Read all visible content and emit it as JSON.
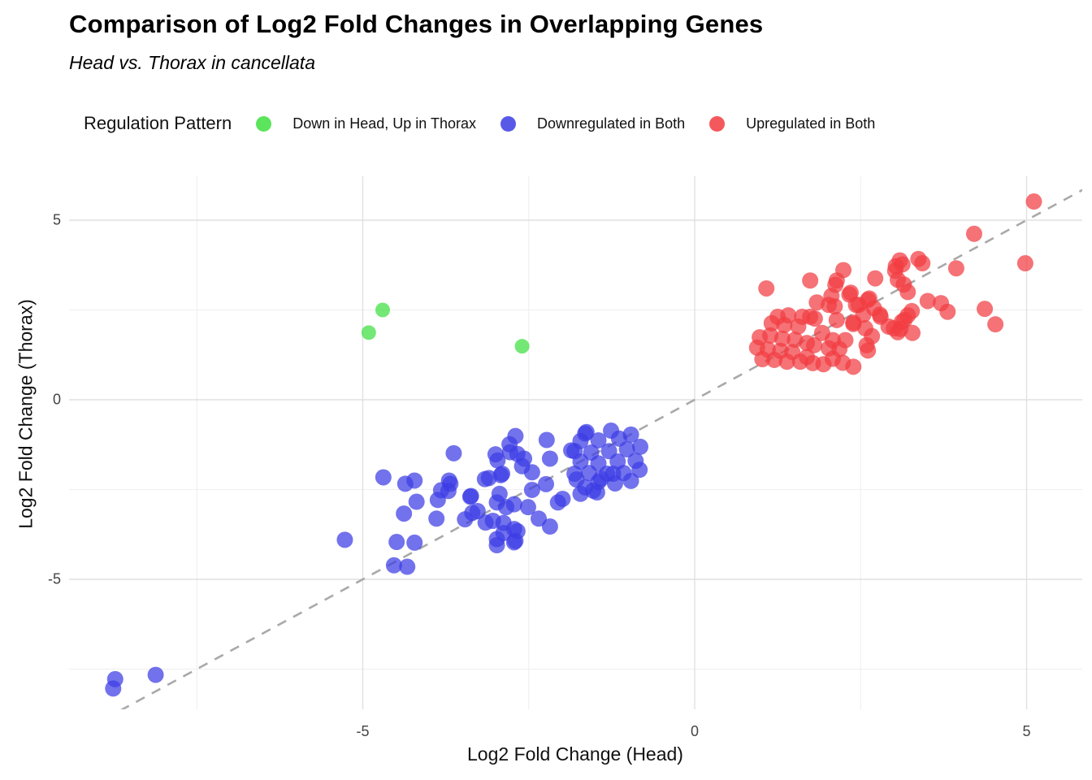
{
  "header": {
    "title": "Comparison of Log2 Fold Changes in Overlapping Genes",
    "subtitle": "Head vs. Thorax in cancellata"
  },
  "legend": {
    "title": "Regulation Pattern",
    "position": "top"
  },
  "axes": {
    "x": {
      "label": "Log2 Fold Change (Head)",
      "major_ticks": [
        -5,
        0,
        5
      ],
      "minor_ticks": [
        -7.5,
        -2.5,
        2.5
      ]
    },
    "y": {
      "label": "Log2 Fold Change (Thorax)",
      "major_ticks": [
        5,
        0,
        -5
      ],
      "minor_ticks": [
        2.5,
        -2.5,
        -7.5
      ]
    }
  },
  "reference_line": {
    "type": "identity y = x",
    "style": "dashed",
    "color": "#a9a9a9"
  },
  "colors": {
    "grid_major": "#e0e0e0",
    "grid_minor": "#efefef",
    "background": "#ffffff"
  },
  "chart_data": {
    "type": "scatter",
    "title": "Comparison of Log2 Fold Changes in Overlapping Genes",
    "subtitle": "Head vs. Thorax in cancellata",
    "xlabel": "Log2 Fold Change (Head)",
    "ylabel": "Log2 Fold Change (Thorax)",
    "xlim": [
      -9.4,
      5.8
    ],
    "ylim": [
      -8.6,
      6.2
    ],
    "grid": true,
    "series": [
      {
        "name": "Down in Head, Up in Thorax",
        "color": "#3fdf3f",
        "points": [
          [
            -4.7,
            2.5
          ],
          [
            -4.91,
            1.87
          ],
          [
            -2.6,
            1.49
          ]
        ]
      },
      {
        "name": "Downregulated in Both",
        "color": "#3c3ce4",
        "points": [
          [
            -8.73,
            -7.78
          ],
          [
            -8.76,
            -8.04
          ],
          [
            -8.12,
            -7.66
          ],
          [
            -5.27,
            -3.9
          ],
          [
            -4.69,
            -2.16
          ],
          [
            -4.36,
            -2.34
          ],
          [
            -4.22,
            -2.25
          ],
          [
            -4.38,
            -3.17
          ],
          [
            -4.19,
            -2.84
          ],
          [
            -3.87,
            -2.79
          ],
          [
            -3.89,
            -3.31
          ],
          [
            -4.49,
            -3.96
          ],
          [
            -4.22,
            -3.98
          ],
          [
            -4.53,
            -4.61
          ],
          [
            -4.33,
            -4.65
          ],
          [
            -3.63,
            -1.49
          ],
          [
            -3.68,
            -2.34
          ],
          [
            -3.71,
            -2.54
          ],
          [
            -3.37,
            -2.68
          ],
          [
            -3.35,
            -3.15
          ],
          [
            -3.15,
            -3.42
          ],
          [
            -3.82,
            -2.52
          ],
          [
            -3.7,
            -2.25
          ],
          [
            -3.38,
            -2.7
          ],
          [
            -3.27,
            -3.1
          ],
          [
            -3.46,
            -3.33
          ],
          [
            -3.04,
            -3.37
          ],
          [
            -2.98,
            -2.86
          ],
          [
            -2.84,
            -2.99
          ],
          [
            -2.88,
            -3.71
          ],
          [
            -2.98,
            -4.05
          ],
          [
            -2.72,
            -3.6
          ],
          [
            -2.7,
            -3.93
          ],
          [
            -2.35,
            -3.31
          ],
          [
            -2.51,
            -2.99
          ],
          [
            -2.06,
            -2.86
          ],
          [
            -2.18,
            -3.53
          ],
          [
            -2.97,
            -1.69
          ],
          [
            -2.79,
            -1.24
          ],
          [
            -2.67,
            -1.51
          ],
          [
            -2.6,
            -1.85
          ],
          [
            -3.1,
            -2.18
          ],
          [
            -2.92,
            -2.1
          ],
          [
            -2.7,
            -1.01
          ],
          [
            -2.23,
            -1.12
          ],
          [
            -1.65,
            -0.94
          ],
          [
            -3.0,
            -1.52
          ],
          [
            -2.78,
            -1.46
          ],
          [
            -2.57,
            -1.64
          ],
          [
            -2.18,
            -1.64
          ],
          [
            -1.86,
            -1.41
          ],
          [
            -2.9,
            -2.06
          ],
          [
            -2.45,
            -2.02
          ],
          [
            -2.24,
            -2.35
          ],
          [
            -1.81,
            -2.06
          ],
          [
            -1.41,
            -2.2
          ],
          [
            -1.23,
            -2.06
          ],
          [
            -2.94,
            -2.62
          ],
          [
            -2.72,
            -2.91
          ],
          [
            -2.45,
            -2.51
          ],
          [
            -1.99,
            -2.76
          ],
          [
            -1.72,
            -2.62
          ],
          [
            -1.47,
            -2.58
          ],
          [
            -2.88,
            -3.43
          ],
          [
            -2.67,
            -3.66
          ],
          [
            -2.72,
            -3.97
          ],
          [
            -2.98,
            -3.88
          ],
          [
            -3.16,
            -2.21
          ],
          [
            -1.63,
            -0.9
          ],
          [
            -1.26,
            -0.86
          ],
          [
            -1.72,
            -1.15
          ],
          [
            -1.45,
            -1.13
          ],
          [
            -1.14,
            -1.08
          ],
          [
            -0.96,
            -0.97
          ],
          [
            -1.81,
            -1.43
          ],
          [
            -1.56,
            -1.47
          ],
          [
            -1.29,
            -1.43
          ],
          [
            -1.02,
            -1.38
          ],
          [
            -0.82,
            -1.31
          ],
          [
            -1.72,
            -1.72
          ],
          [
            -1.45,
            -1.77
          ],
          [
            -1.16,
            -1.72
          ],
          [
            -0.89,
            -1.7
          ],
          [
            -1.59,
            -2.04
          ],
          [
            -1.32,
            -2.06
          ],
          [
            -1.07,
            -2.04
          ],
          [
            -0.83,
            -1.95
          ],
          [
            -1.45,
            -2.29
          ],
          [
            -1.2,
            -2.33
          ],
          [
            -0.96,
            -2.26
          ],
          [
            -1.78,
            -2.22
          ],
          [
            -1.65,
            -2.44
          ],
          [
            -1.53,
            -2.53
          ]
        ]
      },
      {
        "name": "Upregulated in Both",
        "color": "#f13b41",
        "points": [
          [
            1.08,
            3.1
          ],
          [
            1.74,
            3.32
          ],
          [
            2.12,
            3.2
          ],
          [
            2.72,
            3.38
          ],
          [
            3.06,
            3.34
          ],
          [
            2.35,
            2.98
          ],
          [
            3.21,
            3.0
          ],
          [
            1.84,
            2.71
          ],
          [
            2.11,
            2.6
          ],
          [
            2.47,
            2.64
          ],
          [
            2.61,
            2.78
          ],
          [
            2.24,
            3.61
          ],
          [
            2.14,
            3.32
          ],
          [
            3.03,
            3.72
          ],
          [
            3.09,
            3.88
          ],
          [
            2.06,
            2.89
          ],
          [
            2.33,
            2.93
          ],
          [
            2.63,
            2.82
          ],
          [
            2.02,
            2.64
          ],
          [
            2.43,
            2.64
          ],
          [
            2.7,
            2.55
          ],
          [
            2.79,
            2.37
          ],
          [
            1.74,
            2.31
          ],
          [
            2.14,
            2.22
          ],
          [
            2.39,
            2.15
          ],
          [
            2.57,
            1.99
          ],
          [
            2.67,
            1.77
          ],
          [
            1.92,
            1.86
          ],
          [
            2.08,
            1.66
          ],
          [
            2.27,
            1.66
          ],
          [
            2.02,
            1.43
          ],
          [
            2.18,
            1.41
          ],
          [
            1.8,
            1.52
          ],
          [
            2.61,
            1.37
          ],
          [
            3.0,
            1.99
          ],
          [
            3.06,
            1.88
          ],
          [
            3.16,
            2.22
          ],
          [
            1.69,
            1.19
          ],
          [
            1.25,
            2.31
          ],
          [
            1.41,
            2.35
          ],
          [
            1.62,
            2.31
          ],
          [
            1.81,
            2.26
          ],
          [
            1.16,
            2.13
          ],
          [
            1.35,
            2.08
          ],
          [
            1.56,
            2.04
          ],
          [
            0.98,
            1.74
          ],
          [
            1.14,
            1.79
          ],
          [
            1.32,
            1.7
          ],
          [
            1.51,
            1.67
          ],
          [
            1.69,
            1.58
          ],
          [
            0.94,
            1.45
          ],
          [
            1.1,
            1.4
          ],
          [
            1.29,
            1.36
          ],
          [
            1.47,
            1.33
          ],
          [
            1.02,
            1.13
          ],
          [
            1.2,
            1.11
          ],
          [
            1.39,
            1.06
          ],
          [
            1.59,
            1.06
          ],
          [
            1.78,
            1.02
          ],
          [
            1.94,
            0.99
          ],
          [
            5.11,
            5.52
          ],
          [
            4.21,
            4.62
          ],
          [
            3.37,
            3.92
          ],
          [
            3.43,
            3.8
          ],
          [
            3.13,
            3.77
          ],
          [
            3.02,
            3.59
          ],
          [
            3.15,
            3.21
          ],
          [
            3.94,
            3.66
          ],
          [
            4.98,
            3.8
          ],
          [
            3.51,
            2.75
          ],
          [
            3.71,
            2.69
          ],
          [
            3.81,
            2.45
          ],
          [
            3.27,
            2.47
          ],
          [
            3.21,
            2.35
          ],
          [
            3.12,
            2.17
          ],
          [
            4.37,
            2.53
          ],
          [
            4.53,
            2.1
          ],
          [
            2.39,
            2.11
          ],
          [
            2.54,
            2.37
          ],
          [
            2.8,
            2.31
          ],
          [
            2.92,
            2.04
          ],
          [
            3.1,
            1.97
          ],
          [
            3.28,
            1.86
          ],
          [
            2.59,
            1.52
          ],
          [
            2.08,
            1.14
          ],
          [
            2.23,
            1.03
          ],
          [
            2.39,
            0.92
          ]
        ]
      }
    ]
  }
}
